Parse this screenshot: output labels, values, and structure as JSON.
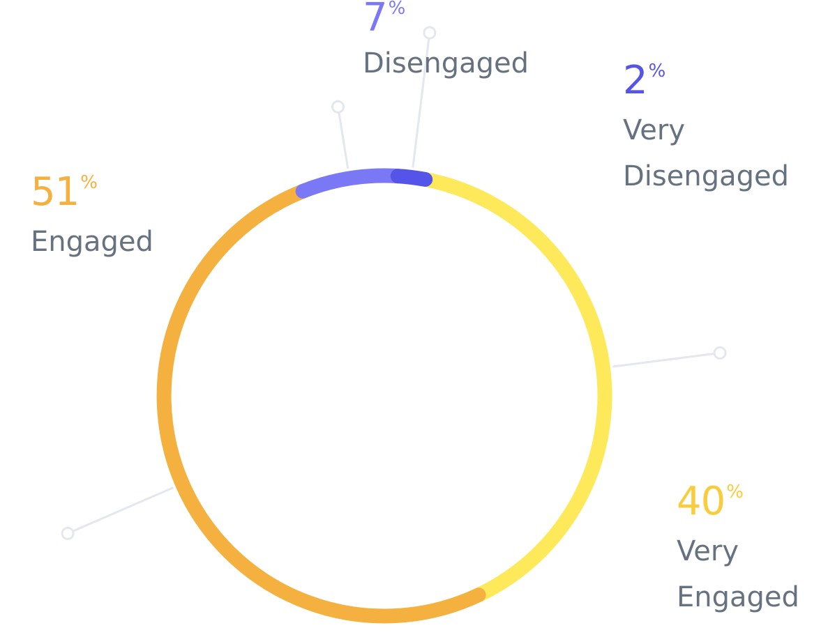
{
  "chart_data": {
    "type": "pie",
    "variant": "donut",
    "title": "",
    "percent_symbol": "%",
    "slices": [
      {
        "key": "very_disengaged",
        "label": "Very\nDisengaged",
        "value": 2,
        "color": "#5554e8"
      },
      {
        "key": "very_engaged",
        "label": "Very\nEngaged",
        "value": 40,
        "color": "#fde95a"
      },
      {
        "key": "engaged",
        "label": "Engaged",
        "value": 51,
        "color": "#f4b13f"
      },
      {
        "key": "disengaged",
        "label": "Disengaged",
        "value": 7,
        "color": "#7b78f5"
      }
    ],
    "callouts": {
      "disengaged": {
        "value": "7",
        "label": "Disengaged",
        "color": "#7b78f5"
      },
      "very_disengaged": {
        "value": "2",
        "label": "Very\nDisengaged",
        "color": "#5554e8"
      },
      "engaged": {
        "value": "51",
        "label": "Engaged",
        "color": "#f4b13f"
      },
      "very_engaged": {
        "value": "40",
        "label": "Very\nEngaged",
        "color": "#f8cc3c"
      }
    },
    "leader_color": "#e4e7ee"
  }
}
